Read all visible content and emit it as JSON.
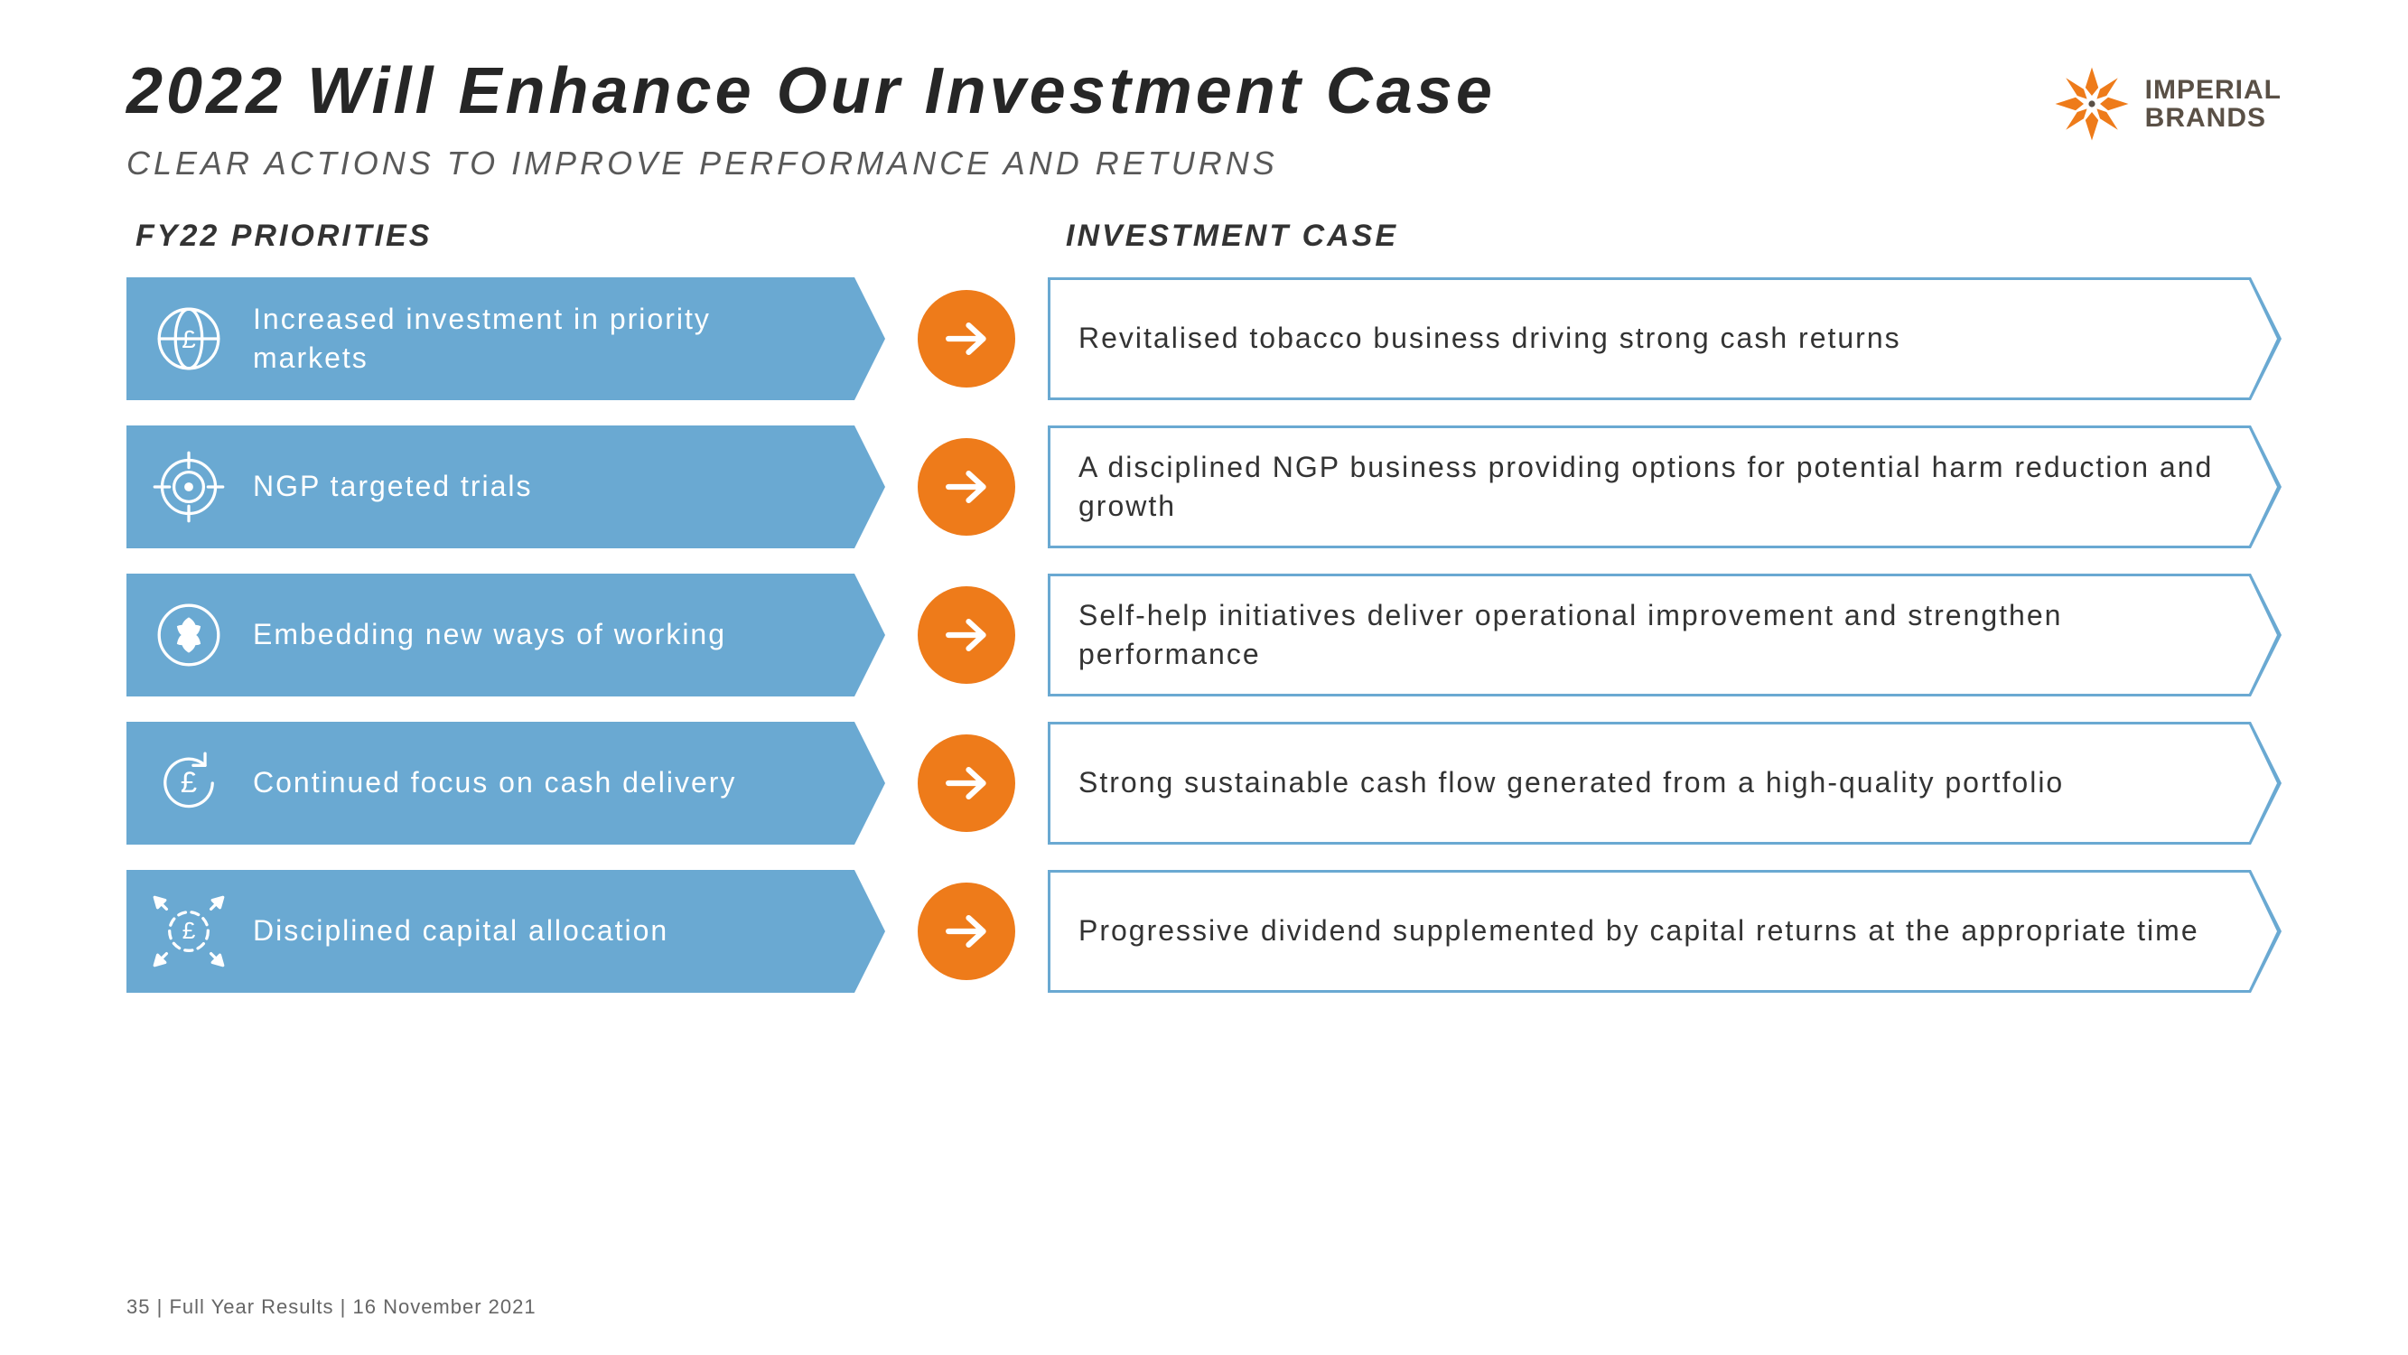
{
  "colors": {
    "priority_bg": "#6aa9d2",
    "accent": "#ee7b1a",
    "title": "#262626",
    "subtitle": "#595959",
    "body_text": "#333333",
    "logo_text": "#5a5046",
    "background": "#ffffff"
  },
  "header": {
    "title": "2022 Will Enhance Our Investment Case",
    "subtitle": "CLEAR ACTIONS TO IMPROVE PERFORMANCE AND RETURNS",
    "logo_line1": "IMPERIAL",
    "logo_line2": "BRANDS"
  },
  "column_headers": {
    "left": "FY22 PRIORITIES",
    "right": "INVESTMENT CASE"
  },
  "rows": [
    {
      "icon": "globe-pound",
      "priority": "Increased investment in priority markets",
      "case": "Revitalised tobacco business driving strong cash returns"
    },
    {
      "icon": "target",
      "priority": "NGP targeted trials",
      "case": "A disciplined NGP business providing options for potential harm reduction and growth"
    },
    {
      "icon": "hands-circle",
      "priority": "Embedding new ways of working",
      "case": "Self-help initiatives deliver operational improvement and strengthen performance"
    },
    {
      "icon": "pound-cycle",
      "priority": "Continued focus on cash delivery",
      "case": "Strong sustainable cash flow generated from a high-quality portfolio"
    },
    {
      "icon": "pound-expand",
      "priority": "Disciplined capital allocation",
      "case": "Progressive dividend supplemented by capital returns at the appropriate time"
    }
  ],
  "footer": {
    "page": "35",
    "separator": " |   ",
    "doc": "Full Year Results",
    "sep2": " | ",
    "date": "16 November 2021"
  }
}
